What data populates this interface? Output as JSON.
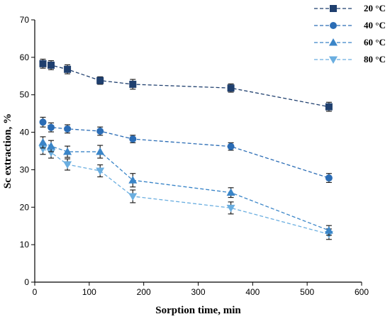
{
  "chart_data": {
    "type": "line",
    "xlabel": "Sorption time, min",
    "ylabel": "Sc extraction, %",
    "xlim": [
      0,
      600
    ],
    "ylim": [
      0,
      70
    ],
    "xticks": [
      0,
      100,
      200,
      300,
      400,
      500,
      600
    ],
    "yticks": [
      0,
      10,
      20,
      30,
      40,
      50,
      60,
      70
    ],
    "x": [
      15,
      30,
      60,
      120,
      180,
      360,
      540
    ],
    "grid": false,
    "legend_position": "top-right",
    "series": [
      {
        "name": "20 °C",
        "marker": "square",
        "color": "#1f3f6e",
        "values": [
          58.3,
          57.9,
          56.8,
          53.8,
          52.8,
          51.8,
          46.8
        ],
        "errors": [
          1.2,
          1.2,
          1.2,
          1.0,
          1.3,
          1.1,
          1.2
        ]
      },
      {
        "name": "40 °C",
        "marker": "circle",
        "color": "#2a6cb5",
        "values": [
          42.7,
          41.3,
          40.9,
          40.3,
          38.2,
          36.2,
          27.8
        ],
        "errors": [
          1.3,
          1.2,
          1.1,
          1.1,
          1.0,
          1.0,
          1.2
        ]
      },
      {
        "name": "60 °C",
        "marker": "triangle-up",
        "color": "#3a85c8",
        "values": [
          37.3,
          36.3,
          34.8,
          34.8,
          27.2,
          23.9,
          13.8
        ],
        "errors": [
          1.5,
          1.5,
          1.5,
          1.7,
          1.8,
          1.3,
          1.3
        ]
      },
      {
        "name": "80 °C",
        "marker": "triangle-down",
        "color": "#6aaee0",
        "values": [
          35.6,
          34.6,
          31.4,
          29.7,
          22.9,
          19.8,
          12.8
        ],
        "errors": [
          1.5,
          1.5,
          1.5,
          1.6,
          1.7,
          1.6,
          1.4
        ]
      }
    ]
  }
}
